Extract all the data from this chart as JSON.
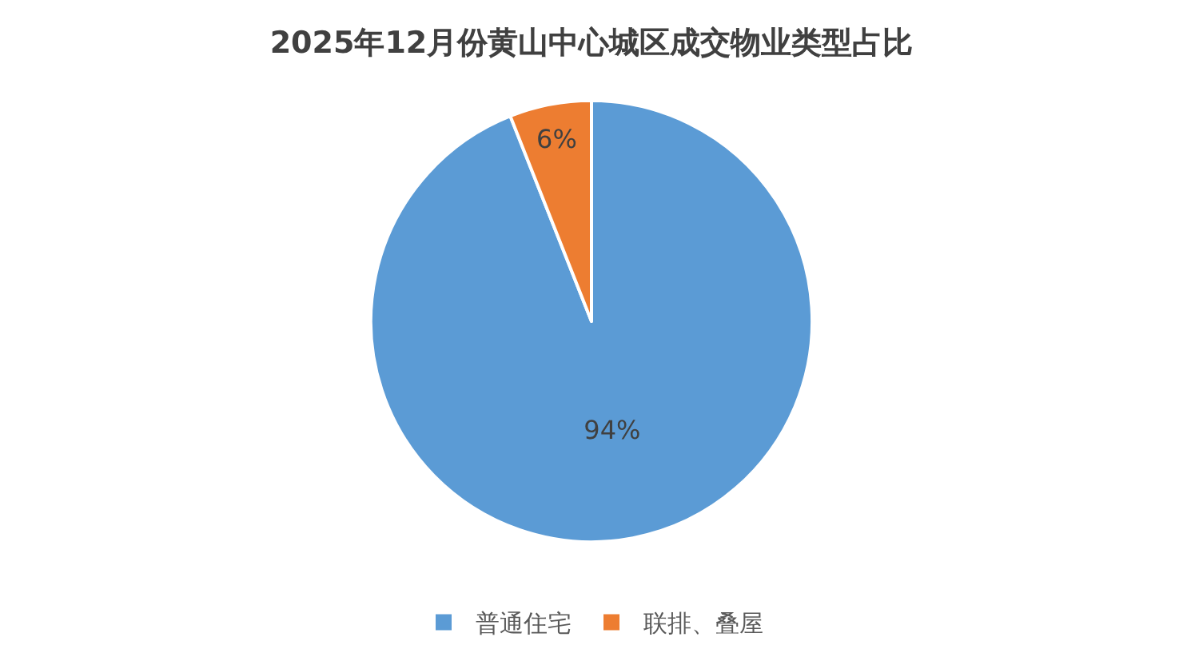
{
  "chart_data": {
    "type": "pie",
    "title": "2025年12月份黄山中心城区成交物业类型占比",
    "categories": [
      "普通住宅",
      "联排、叠屋"
    ],
    "values": [
      94,
      6
    ],
    "colors": [
      "#5b9bd5",
      "#ed7d31"
    ],
    "value_labels": [
      "94%",
      "6%"
    ],
    "legend": "bottom"
  }
}
